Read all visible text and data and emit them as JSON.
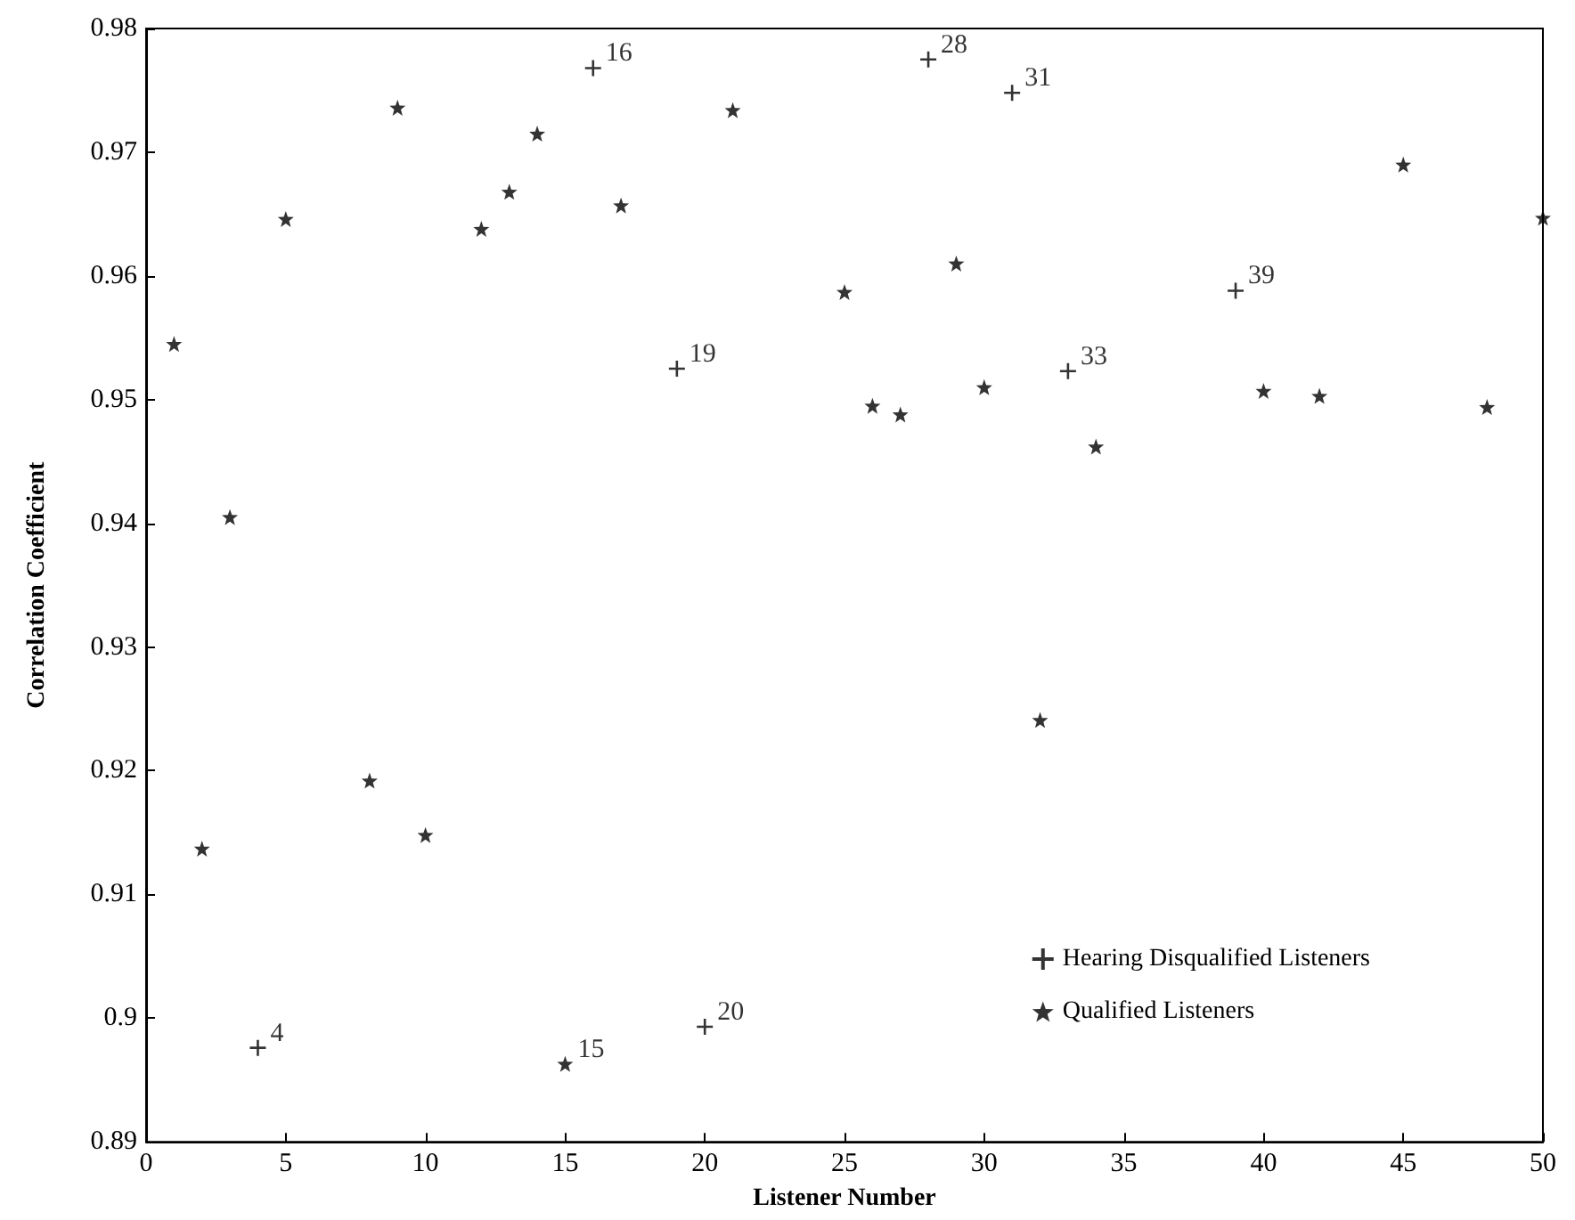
{
  "chart_data": {
    "type": "scatter",
    "xlabel": "Listener Number",
    "ylabel": "Correlation Coefficient",
    "xlim": [
      0,
      50
    ],
    "xticks": [
      0,
      5,
      10,
      15,
      20,
      25,
      30,
      35,
      40,
      45,
      50
    ],
    "ylim": [
      0.89,
      0.98
    ],
    "yticks": [
      0.89,
      0.9,
      0.91,
      0.92,
      0.93,
      0.94,
      0.95,
      0.96,
      0.97,
      0.98
    ],
    "grid": false,
    "legend": "bottom right",
    "series": [
      {
        "name": "Hearing Disqualified Listeners",
        "color": "#000000",
        "marker": "cross",
        "x": [
          4,
          16,
          19,
          20,
          28,
          31,
          33,
          39
        ],
        "values": [
          0.8976,
          0.9768,
          0.9525,
          0.8993,
          0.9775,
          0.9748,
          0.9523,
          0.9588
        ]
      },
      {
        "name": "Qualified Listeners",
        "color": "#000000",
        "marker": "star",
        "x": [
          1,
          2,
          3,
          5,
          8,
          9,
          10,
          12,
          13,
          14,
          15,
          17,
          21,
          25,
          26,
          27,
          29,
          30,
          32,
          34,
          40,
          42,
          45,
          48,
          50
        ],
        "values": [
          0.9545,
          0.9137,
          0.9405,
          0.9646,
          0.9192,
          0.9736,
          0.9148,
          0.9638,
          0.9668,
          0.9715,
          0.8963,
          0.9657,
          0.9734,
          0.9587,
          0.9495,
          0.9488,
          0.961,
          0.951,
          0.9241,
          0.9462,
          0.9507,
          0.9503,
          0.969,
          0.9494,
          0.9647
        ]
      }
    ],
    "annotations": [
      {
        "text": "4",
        "x": 4,
        "y": 0.8976
      },
      {
        "text": "16",
        "x": 16,
        "y": 0.9768
      },
      {
        "text": "19",
        "x": 19,
        "y": 0.9525
      },
      {
        "text": "20",
        "x": 20,
        "y": 0.8993
      },
      {
        "text": "28",
        "x": 28,
        "y": 0.9775
      },
      {
        "text": "31",
        "x": 31,
        "y": 0.9748
      },
      {
        "text": "33",
        "x": 33,
        "y": 0.9523
      },
      {
        "text": "39",
        "x": 39,
        "y": 0.9588
      },
      {
        "text": "15",
        "x": 15,
        "y": 0.8963
      }
    ]
  }
}
